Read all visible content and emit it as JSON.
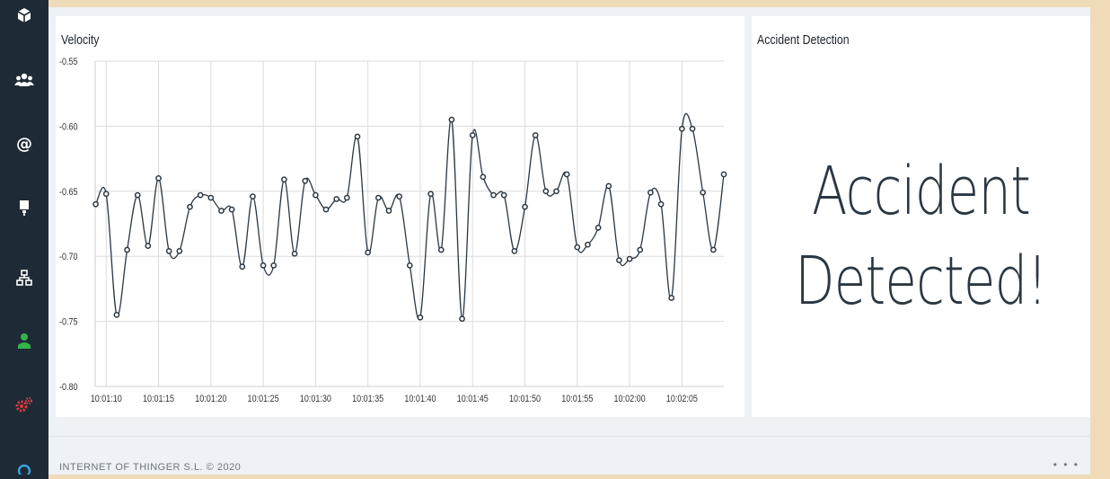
{
  "sidebar": {
    "icons": [
      {
        "name": "cube-icon",
        "color": "#ffffff"
      },
      {
        "name": "users-icon",
        "color": "#ffffff"
      },
      {
        "name": "at-icon",
        "color": "#ffffff"
      },
      {
        "name": "device-icon",
        "color": "#ffffff"
      },
      {
        "name": "network-icon",
        "color": "#ffffff"
      },
      {
        "name": "user-icon",
        "color": "#35b34a"
      },
      {
        "name": "gears-icon",
        "color": "#e0393e"
      },
      {
        "name": "circle-icon",
        "color": "#3aa0d8"
      }
    ]
  },
  "velocity_card": {
    "title": "Velocity"
  },
  "accident_card": {
    "title": "Accident Detection",
    "message_line1": "Accident",
    "message_line2": "Detected!"
  },
  "footer": {
    "text": "INTERNET OF THINGER S.L. © 2020",
    "dots": "• • •"
  },
  "chart_data": {
    "type": "line",
    "title": "Velocity",
    "xlabel": "",
    "ylabel": "",
    "ylim": [
      -0.8,
      -0.55
    ],
    "y_ticks": [
      "-0.55",
      "-0.60",
      "-0.65",
      "-0.70",
      "-0.75",
      "-0.80"
    ],
    "x_ticks": [
      "10:01:10",
      "10:01:15",
      "10:01:20",
      "10:01:25",
      "10:01:30",
      "10:01:35",
      "10:01:40",
      "10:01:45",
      "10:01:50",
      "10:01:55",
      "10:02:00",
      "10:02:05"
    ],
    "grid": true,
    "line_color": "#2b3742",
    "series": [
      {
        "x": [
          "10:01:09",
          "10:01:10",
          "10:01:11",
          "10:01:12",
          "10:01:13",
          "10:01:14",
          "10:01:15",
          "10:01:16",
          "10:01:17",
          "10:01:18",
          "10:01:19",
          "10:01:20",
          "10:01:21",
          "10:01:22",
          "10:01:23",
          "10:01:24",
          "10:01:25",
          "10:01:26",
          "10:01:27",
          "10:01:28",
          "10:01:29",
          "10:01:30",
          "10:01:31",
          "10:01:32",
          "10:01:33",
          "10:01:34",
          "10:01:35",
          "10:01:36",
          "10:01:37",
          "10:01:38",
          "10:01:39",
          "10:01:40",
          "10:01:41",
          "10:01:42",
          "10:01:43",
          "10:01:44",
          "10:01:45",
          "10:01:46",
          "10:01:47",
          "10:01:48",
          "10:01:49",
          "10:01:50",
          "10:01:51",
          "10:01:52",
          "10:01:53",
          "10:01:54",
          "10:01:55",
          "10:01:56",
          "10:01:57",
          "10:01:58",
          "10:01:59",
          "10:02:00",
          "10:02:01",
          "10:02:02",
          "10:02:03",
          "10:02:04",
          "10:02:05",
          "10:02:06",
          "10:02:07",
          "10:02:08",
          "10:02:09"
        ],
        "values": [
          -0.66,
          -0.652,
          -0.745,
          -0.695,
          -0.653,
          -0.692,
          -0.64,
          -0.696,
          -0.696,
          -0.662,
          -0.653,
          -0.655,
          -0.665,
          -0.664,
          -0.708,
          -0.654,
          -0.707,
          -0.707,
          -0.641,
          -0.698,
          -0.642,
          -0.653,
          -0.664,
          -0.656,
          -0.655,
          -0.608,
          -0.697,
          -0.655,
          -0.665,
          -0.654,
          -0.707,
          -0.747,
          -0.652,
          -0.695,
          -0.595,
          -0.748,
          -0.607,
          -0.639,
          -0.653,
          -0.653,
          -0.696,
          -0.662,
          -0.607,
          -0.65,
          -0.65,
          -0.637,
          -0.693,
          -0.691,
          -0.678,
          -0.646,
          -0.703,
          -0.702,
          -0.695,
          -0.651,
          -0.66,
          -0.732,
          -0.602,
          -0.602,
          -0.651,
          -0.695,
          -0.637
        ]
      }
    ]
  }
}
